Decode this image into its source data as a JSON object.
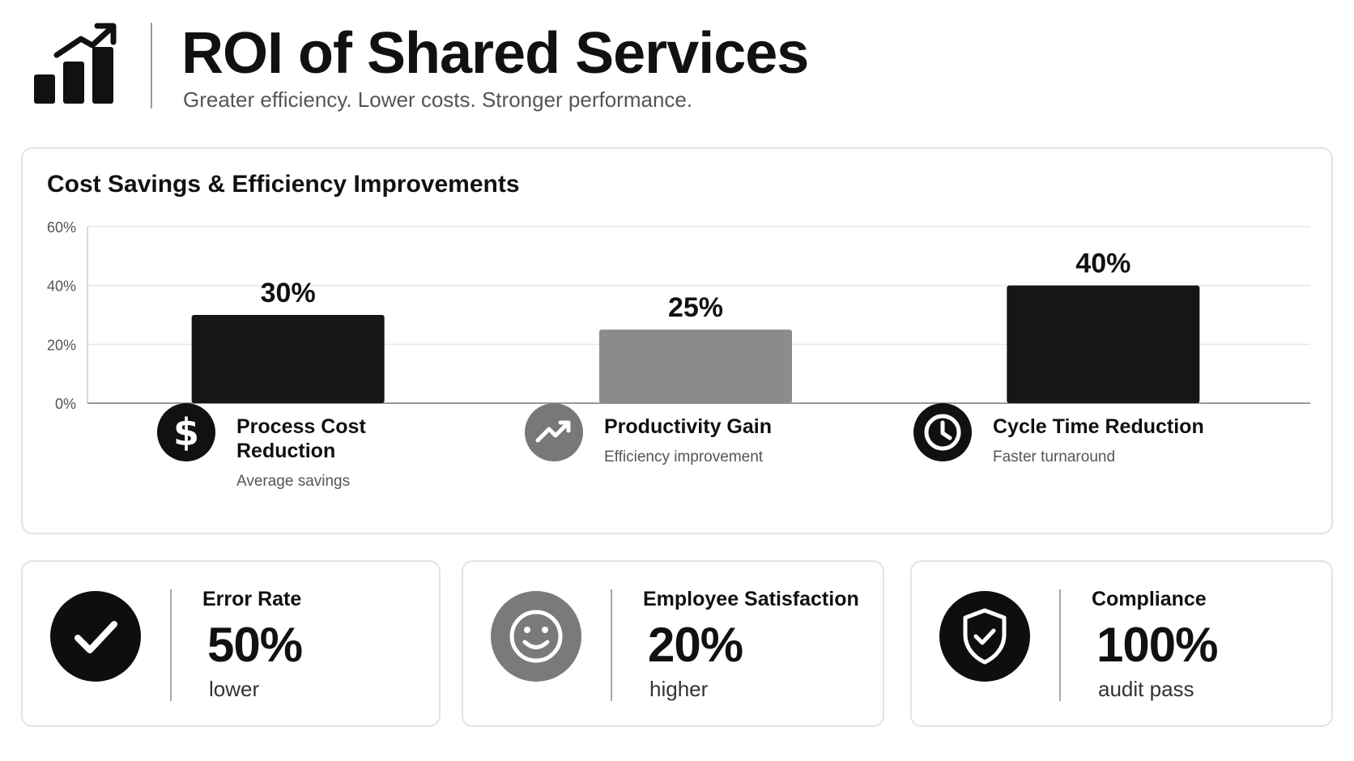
{
  "header": {
    "title": "ROI of Shared Services",
    "subtitle": "Greater efficiency. Lower costs. Stronger performance.",
    "logo_icon": "bar-chart-growth-icon"
  },
  "chart_card": {
    "title": "Cost Savings & Efficiency Improvements"
  },
  "chart_data": {
    "type": "bar",
    "title": "Cost Savings & Efficiency Improvements",
    "categories": [
      "Process Cost Reduction",
      "Productivity Gain",
      "Cycle Time Reduction"
    ],
    "values": [
      30,
      25,
      40
    ],
    "value_labels": [
      "30%",
      "25%",
      "40%"
    ],
    "bar_colors": [
      "#161616",
      "#8a8b8d",
      "#161616"
    ],
    "ylim": [
      0,
      60
    ],
    "yticks": [
      0,
      20,
      40,
      60
    ],
    "ytick_labels": [
      "0%",
      "20%",
      "40%",
      "60%"
    ],
    "xlabel": "",
    "ylabel": "",
    "grid": true,
    "legend": "none"
  },
  "kpis": [
    {
      "icon": "dollar-icon",
      "label_lines": [
        "Process Cost",
        "Reduction"
      ],
      "sub": "Average savings",
      "color": "#111111"
    },
    {
      "icon": "trending-up-icon",
      "label_lines": [
        "Productivity Gain"
      ],
      "sub": "Efficiency improvement",
      "color": "#77787a"
    },
    {
      "icon": "clock-icon",
      "label_lines": [
        "Cycle Time Reduction"
      ],
      "sub": "Faster turnaround",
      "color": "#111111"
    }
  ],
  "stats": [
    {
      "icon": "checkmark-icon",
      "label": "Error Rate",
      "value": "50%",
      "note": "lower",
      "color": "#0e0e0e"
    },
    {
      "icon": "smiley-face-icon",
      "label": "Employee Satisfaction",
      "value": "20%",
      "note": "higher",
      "color": "#7a7a7a"
    },
    {
      "icon": "shield-check-icon",
      "label": "Compliance",
      "value": "100%",
      "note": "audit pass",
      "color": "#0e0e0e"
    }
  ]
}
